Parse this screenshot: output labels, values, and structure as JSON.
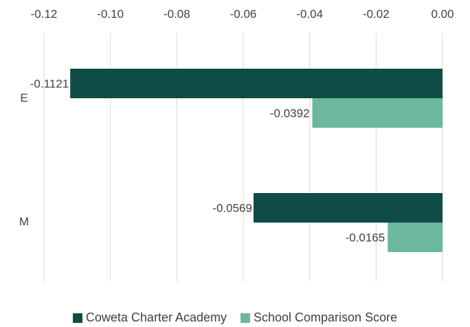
{
  "colors": {
    "series1": "#0f4c45",
    "series2": "#6cb89f",
    "grid": "#d9d9d9"
  },
  "chart_data": {
    "type": "bar",
    "orientation": "horizontal",
    "categories": [
      "E",
      "M"
    ],
    "series": [
      {
        "name": "Coweta Charter Academy",
        "values": [
          -0.1121,
          -0.0569
        ],
        "labels": [
          "-0.1121",
          "-0.0569"
        ]
      },
      {
        "name": "School Comparison Score",
        "values": [
          -0.0392,
          -0.0165
        ],
        "labels": [
          "-0.0392",
          "-0.0165"
        ]
      }
    ],
    "xlim": [
      -0.12,
      0.0
    ],
    "xticks": [
      -0.12,
      -0.1,
      -0.08,
      -0.06,
      -0.04,
      -0.02,
      0.0
    ],
    "xtick_labels": [
      "-0.12",
      "-0.10",
      "-0.08",
      "-0.06",
      "-0.04",
      "-0.02",
      "0.00"
    ],
    "axis_position": "top",
    "grid": true,
    "legend_position": "bottom",
    "title": "",
    "xlabel": "",
    "ylabel": ""
  }
}
